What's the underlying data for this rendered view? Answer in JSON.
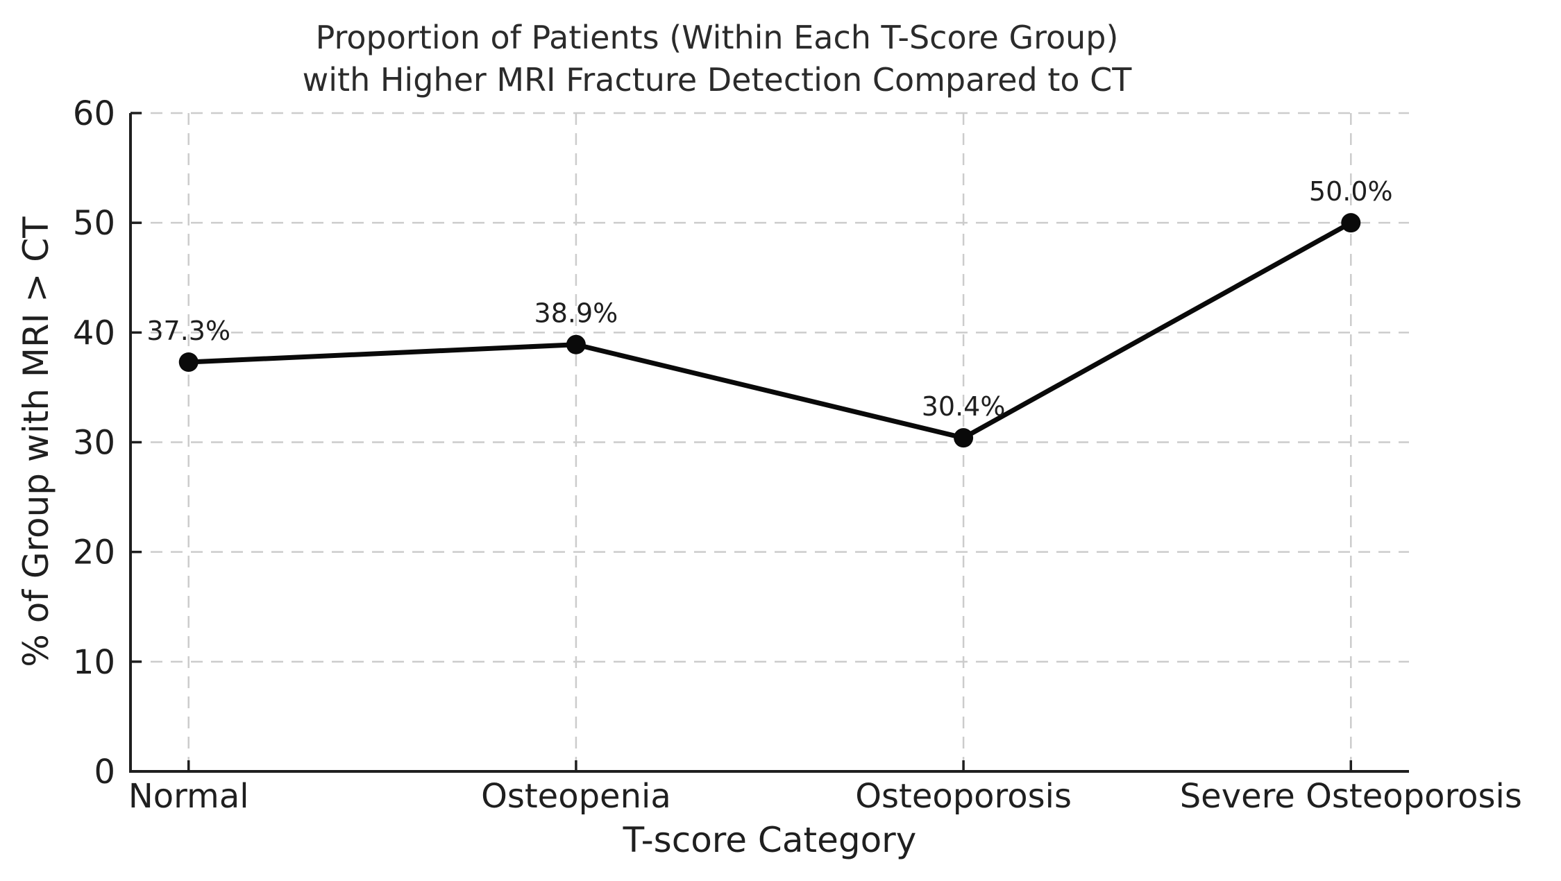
{
  "figure": {
    "title_line1": "Proportion of Patients (Within Each T-Score Group)",
    "title_line2": "with Higher MRI Fracture Detection Compared to CT"
  },
  "chart_data": {
    "type": "line",
    "title": "Proportion of Patients (Within Each T-Score Group) with Higher MRI Fracture Detection Compared to CT",
    "categories": [
      "Normal",
      "Osteopenia",
      "Osteoporosis",
      "Severe Osteoporosis"
    ],
    "values": [
      37.3,
      38.9,
      30.4,
      50.0
    ],
    "point_labels": [
      "37.3%",
      "38.9%",
      "30.4%",
      "50.0%"
    ],
    "xlabel": "T-score Category",
    "ylabel": "% of Group with MRI > CT",
    "ylim": [
      0,
      60
    ],
    "yticks": [
      0,
      10,
      20,
      30,
      40,
      50,
      60
    ],
    "grid": "dashed, horizontal and vertical",
    "legend_position": "none",
    "line_color": "#0a0a0a",
    "marker": "filled-circle",
    "grid_color": "#cccccc",
    "axis_color": "#1f1f1f",
    "text_color": "#1f1f1f",
    "background_color": "#ffffff"
  }
}
